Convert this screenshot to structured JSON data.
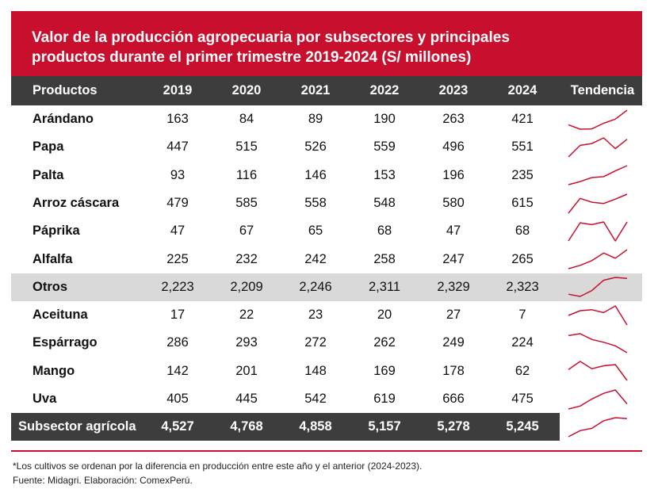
{
  "title": {
    "line1": "Valor de la producción agropecuaria por subsectores y principales",
    "line2": "productos durante el primer trimestre 2019-2024 (S/ millones)"
  },
  "header": {
    "products": "Productos",
    "years": [
      "2019",
      "2020",
      "2021",
      "2022",
      "2023",
      "2024"
    ],
    "trend": "Tendencia"
  },
  "rows": [
    {
      "name": "Arándano",
      "values": [
        "163",
        "84",
        "89",
        "190",
        "263",
        "421"
      ]
    },
    {
      "name": "Papa",
      "values": [
        "447",
        "515",
        "526",
        "559",
        "496",
        "551"
      ]
    },
    {
      "name": "Palta",
      "values": [
        "93",
        "116",
        "146",
        "153",
        "196",
        "235"
      ]
    },
    {
      "name": "Arroz cáscara",
      "values": [
        "479",
        "585",
        "558",
        "548",
        "580",
        "615"
      ]
    },
    {
      "name": "Páprika",
      "values": [
        "47",
        "67",
        "65",
        "68",
        "47",
        "68"
      ]
    },
    {
      "name": "Alfalfa",
      "values": [
        "225",
        "232",
        "242",
        "258",
        "247",
        "265"
      ]
    },
    {
      "name": "Otros",
      "values": [
        "2,223",
        "2,209",
        "2,246",
        "2,311",
        "2,329",
        "2,323"
      ]
    },
    {
      "name": "Aceituna",
      "values": [
        "17",
        "22",
        "23",
        "20",
        "27",
        "7"
      ]
    },
    {
      "name": "Espárrago",
      "values": [
        "286",
        "293",
        "272",
        "262",
        "249",
        "224"
      ]
    },
    {
      "name": "Mango",
      "values": [
        "142",
        "201",
        "148",
        "169",
        "178",
        "62"
      ]
    },
    {
      "name": "Uva",
      "values": [
        "405",
        "445",
        "542",
        "619",
        "666",
        "475"
      ]
    }
  ],
  "total": {
    "name": "Subsector agrícola",
    "values": [
      "4,527",
      "4,768",
      "4,858",
      "5,157",
      "5,278",
      "5,245"
    ]
  },
  "footnotes": {
    "note": "*Los cultivos se ordenan por la diferencia en producción entre este año y el anterior (2024-2023).",
    "source": "Fuente: Midagri. Elaboración: ComexPerú."
  },
  "colors": {
    "brand_red": "#c8102e",
    "header_dark": "#3d3d3d",
    "highlight_gray": "#d9d9d9"
  }
}
